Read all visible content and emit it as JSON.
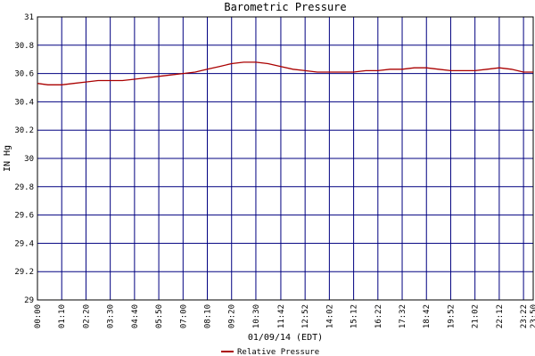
{
  "chart_data": {
    "type": "line",
    "title": "Barometric Pressure",
    "xlabel": "01/09/14 (EDT)",
    "ylabel": "IN Hg",
    "ylim": [
      29,
      31
    ],
    "yticks": [
      "29",
      "29.2",
      "29.4",
      "29.6",
      "29.8",
      "30",
      "30.2",
      "30.4",
      "30.6",
      "30.8",
      "31"
    ],
    "xticks": [
      "00:00",
      "01:10",
      "02:20",
      "03:30",
      "04:40",
      "05:50",
      "07:00",
      "08:10",
      "09:20",
      "10:30",
      "11:42",
      "12:52",
      "14:02",
      "15:12",
      "16:22",
      "17:32",
      "18:42",
      "19:52",
      "21:02",
      "22:12",
      "23:22",
      "23:50"
    ],
    "grid": true,
    "legend_position": "bottom-center",
    "series": [
      {
        "name": "Relative Pressure",
        "color": "#aa0000",
        "points": [
          [
            "00:00",
            30.53
          ],
          [
            "00:30",
            30.52
          ],
          [
            "01:10",
            30.52
          ],
          [
            "01:45",
            30.53
          ],
          [
            "02:20",
            30.54
          ],
          [
            "02:55",
            30.55
          ],
          [
            "03:30",
            30.55
          ],
          [
            "04:05",
            30.55
          ],
          [
            "04:40",
            30.56
          ],
          [
            "05:15",
            30.57
          ],
          [
            "05:50",
            30.58
          ],
          [
            "06:25",
            30.59
          ],
          [
            "07:00",
            30.6
          ],
          [
            "07:35",
            30.61
          ],
          [
            "08:10",
            30.63
          ],
          [
            "08:45",
            30.65
          ],
          [
            "09:20",
            30.67
          ],
          [
            "09:55",
            30.68
          ],
          [
            "10:30",
            30.68
          ],
          [
            "11:05",
            30.67
          ],
          [
            "11:42",
            30.65
          ],
          [
            "12:17",
            30.63
          ],
          [
            "12:52",
            30.62
          ],
          [
            "13:27",
            30.61
          ],
          [
            "14:02",
            30.61
          ],
          [
            "14:37",
            30.61
          ],
          [
            "15:12",
            30.61
          ],
          [
            "15:47",
            30.62
          ],
          [
            "16:22",
            30.62
          ],
          [
            "16:57",
            30.63
          ],
          [
            "17:32",
            30.63
          ],
          [
            "18:07",
            30.64
          ],
          [
            "18:42",
            30.64
          ],
          [
            "19:17",
            30.63
          ],
          [
            "19:52",
            30.62
          ],
          [
            "20:27",
            30.62
          ],
          [
            "21:02",
            30.62
          ],
          [
            "21:37",
            30.63
          ],
          [
            "22:12",
            30.64
          ],
          [
            "22:47",
            30.63
          ],
          [
            "23:22",
            30.61
          ],
          [
            "23:50",
            30.61
          ]
        ]
      }
    ]
  }
}
